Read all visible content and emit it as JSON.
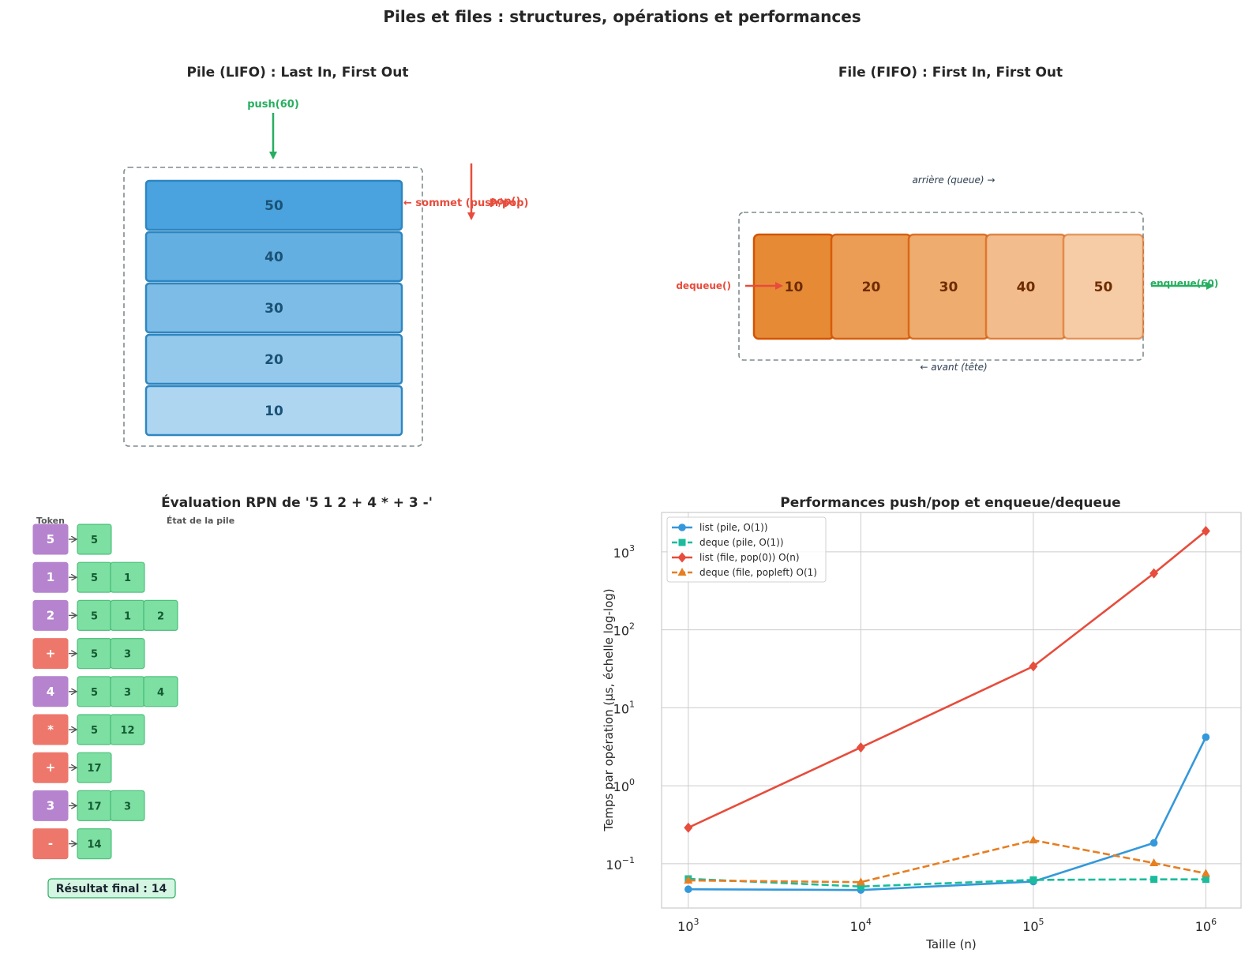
{
  "figure_title": "Piles et files : structures, opérations et performances",
  "colors": {
    "stack_fill": [
      "#aed6f1",
      "#95c9eb",
      "#7dbce6",
      "#64afe1",
      "#4aa3de"
    ],
    "stack_border": "#2e86c1",
    "stack_text": "#1a5276",
    "queue_fill": [
      "#e68a36",
      "#eb9c55",
      "#eeac6f",
      "#f2bc8d",
      "#f5cca6"
    ],
    "queue_border": "#d35400",
    "queue_text": "#6e2c00",
    "green": "#27ae60",
    "red": "#e74c3c",
    "token_operand": "#b684ce",
    "token_operator": "#ee776b",
    "stack_cell": "#7ddfa2"
  },
  "stack_panel": {
    "title": "Pile (LIFO) : Last In, First Out",
    "push_label": "push(60)",
    "pop_label": "pop()",
    "top_label": "← sommet (push/pop)",
    "items_top_to_bottom": [
      "50",
      "40",
      "30",
      "20",
      "10"
    ]
  },
  "queue_panel": {
    "title": "File (FIFO) : First In, First Out",
    "rear_label": "arrière (queue) →",
    "front_label": "← avant (tête)",
    "dequeue_label": "dequeue()",
    "enqueue_label": "enqueue(60)",
    "items_front_to_rear": [
      "10",
      "20",
      "30",
      "40",
      "50"
    ]
  },
  "rpn_panel": {
    "title": "Évaluation RPN de '5 1 2 + 4 * + 3 -'",
    "token_header": "Token",
    "stack_header": "État de la pile",
    "steps": [
      {
        "token": "5",
        "kind": "operand",
        "stack": [
          "5"
        ]
      },
      {
        "token": "1",
        "kind": "operand",
        "stack": [
          "5",
          "1"
        ]
      },
      {
        "token": "2",
        "kind": "operand",
        "stack": [
          "5",
          "1",
          "2"
        ]
      },
      {
        "token": "+",
        "kind": "operator",
        "stack": [
          "5",
          "3"
        ]
      },
      {
        "token": "4",
        "kind": "operand",
        "stack": [
          "5",
          "3",
          "4"
        ]
      },
      {
        "token": "*",
        "kind": "operator",
        "stack": [
          "5",
          "12"
        ]
      },
      {
        "token": "+",
        "kind": "operator",
        "stack": [
          "17"
        ]
      },
      {
        "token": "3",
        "kind": "operand",
        "stack": [
          "17",
          "3"
        ]
      },
      {
        "token": "-",
        "kind": "operator",
        "stack": [
          "14"
        ]
      }
    ],
    "result_label": "Résultat final : 14"
  },
  "chart_data": {
    "type": "line",
    "title": "Performances push/pop et enqueue/dequeue",
    "xlabel": "Taille (n)",
    "ylabel": "Temps par opération (µs, échelle log-log)",
    "xscale": "log",
    "yscale": "log",
    "xlim": [
      700,
      1600000
    ],
    "ylim": [
      0.027,
      3200
    ],
    "x_ticks": [
      1000,
      10000,
      100000,
      1000000
    ],
    "x_tick_labels": [
      {
        "base": "10",
        "exp": "3"
      },
      {
        "base": "10",
        "exp": "4"
      },
      {
        "base": "10",
        "exp": "5"
      },
      {
        "base": "10",
        "exp": "6"
      }
    ],
    "y_ticks": [
      0.1,
      1,
      10,
      100,
      1000
    ],
    "y_tick_labels": [
      {
        "base": "10",
        "exp": "−1"
      },
      {
        "base": "10",
        "exp": "0"
      },
      {
        "base": "10",
        "exp": "1"
      },
      {
        "base": "10",
        "exp": "2"
      },
      {
        "base": "10",
        "exp": "3"
      }
    ],
    "grid": true,
    "legend_position": "top-left",
    "series": [
      {
        "name": "list (pile, O(1))",
        "color": "#3498db",
        "dash": "solid",
        "marker": "circle",
        "x": [
          1000,
          10000,
          100000,
          500000,
          1000000
        ],
        "y": [
          0.047,
          0.046,
          0.059,
          0.185,
          4.2
        ]
      },
      {
        "name": "deque (pile, O(1))",
        "color": "#1abc9c",
        "dash": "dashed",
        "marker": "square",
        "x": [
          1000,
          10000,
          100000,
          500000,
          1000000
        ],
        "y": [
          0.064,
          0.051,
          0.062,
          0.063,
          0.063
        ]
      },
      {
        "name": "list (file, pop(0)) O(n)",
        "color": "#e74c3c",
        "dash": "solid",
        "marker": "diamond",
        "x": [
          1000,
          10000,
          100000,
          500000,
          1000000
        ],
        "y": [
          0.29,
          3.1,
          34,
          530,
          1850
        ]
      },
      {
        "name": "deque (file, popleft) O(1)",
        "color": "#e67e22",
        "dash": "dashed",
        "marker": "triangle",
        "x": [
          1000,
          10000,
          100000,
          500000,
          1000000
        ],
        "y": [
          0.061,
          0.058,
          0.2,
          0.102,
          0.075
        ]
      }
    ]
  }
}
